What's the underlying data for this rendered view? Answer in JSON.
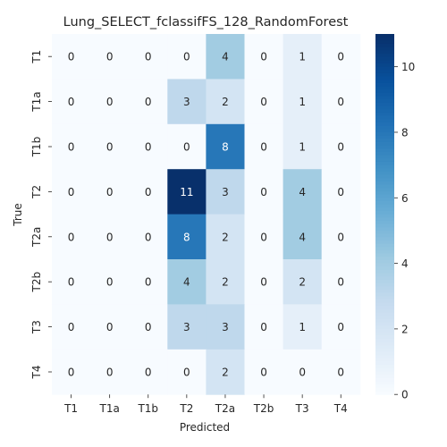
{
  "chart_data": {
    "type": "heatmap",
    "title": "Lung_SELECT_fclassifFS_128_RandomForest",
    "xlabel": "Predicted",
    "ylabel": "True",
    "x_categories": [
      "T1",
      "T1a",
      "T1b",
      "T2",
      "T2a",
      "T2b",
      "T3",
      "T4"
    ],
    "y_categories": [
      "T1",
      "T1a",
      "T1b",
      "T2",
      "T2a",
      "T2b",
      "T3",
      "T4"
    ],
    "values": [
      [
        0,
        0,
        0,
        0,
        4,
        0,
        1,
        0
      ],
      [
        0,
        0,
        0,
        3,
        2,
        0,
        1,
        0
      ],
      [
        0,
        0,
        0,
        0,
        8,
        0,
        1,
        0
      ],
      [
        0,
        0,
        0,
        11,
        3,
        0,
        4,
        0
      ],
      [
        0,
        0,
        0,
        8,
        2,
        0,
        4,
        0
      ],
      [
        0,
        0,
        0,
        4,
        2,
        0,
        2,
        0
      ],
      [
        0,
        0,
        0,
        3,
        3,
        0,
        1,
        0
      ],
      [
        0,
        0,
        0,
        0,
        2,
        0,
        0,
        0
      ]
    ],
    "value_range": [
      0,
      11
    ],
    "colorbar_ticks": [
      "0",
      "2",
      "4",
      "6",
      "8",
      "10"
    ],
    "colormap": "Blues",
    "grid": false,
    "legend": "colorbar-right"
  }
}
